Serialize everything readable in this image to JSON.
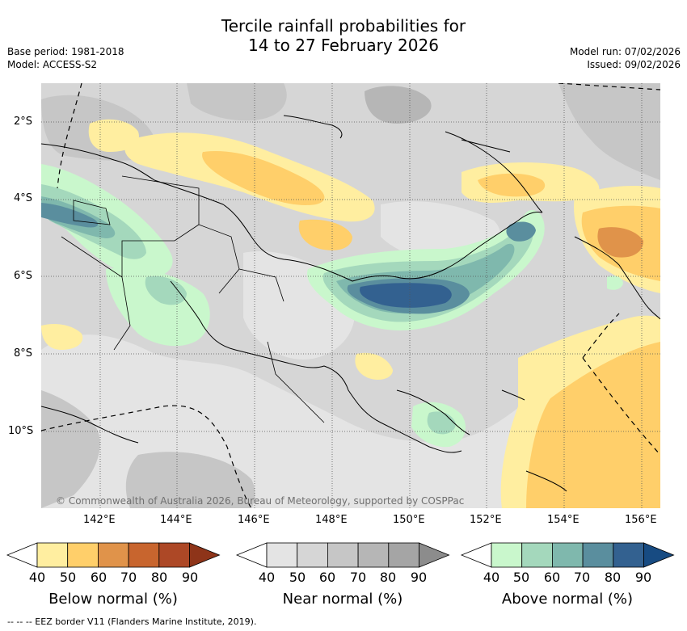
{
  "title": {
    "line1": "Tercile rainfall probabilities for",
    "line2": "14 to 27 February 2026"
  },
  "meta_left": {
    "base_period": "Base period: 1981-2018",
    "model": "Model: ACCESS-S2"
  },
  "meta_right": {
    "model_run": "Model run: 07/02/2026",
    "issued": "Issued: 09/02/2026"
  },
  "map": {
    "lat_ticks": [
      "2°S",
      "4°S",
      "6°S",
      "8°S",
      "10°S"
    ],
    "lon_ticks": [
      "142°E",
      "144°E",
      "146°E",
      "148°E",
      "150°E",
      "152°E",
      "154°E",
      "156°E"
    ],
    "copyright": "© Commonwealth of Australia 2026, Bureau of Meteorology, supported by COSPPac"
  },
  "colorbars": [
    {
      "title": "Below normal (%)",
      "labels": [
        "40",
        "50",
        "60",
        "70",
        "80",
        "90"
      ],
      "colors": [
        "#ffeea0",
        "#ffcf6a",
        "#e0934a",
        "#c8652e",
        "#ad4826",
        "#8e3419"
      ]
    },
    {
      "title": "Near normal (%)",
      "labels": [
        "40",
        "50",
        "60",
        "70",
        "80",
        "90"
      ],
      "colors": [
        "#e4e4e4",
        "#d6d6d6",
        "#c6c6c6",
        "#b6b6b6",
        "#a5a5a5",
        "#8c8c8c"
      ]
    },
    {
      "title": "Above normal (%)",
      "labels": [
        "40",
        "50",
        "60",
        "70",
        "80",
        "90"
      ],
      "colors": [
        "#c9f7cc",
        "#a4d8bc",
        "#7fb8ad",
        "#5a8e9e",
        "#336190",
        "#174b82"
      ]
    }
  ],
  "footnote": "--  --  -- EEZ border V11 (Flanders Marine Institute, 2019)."
}
